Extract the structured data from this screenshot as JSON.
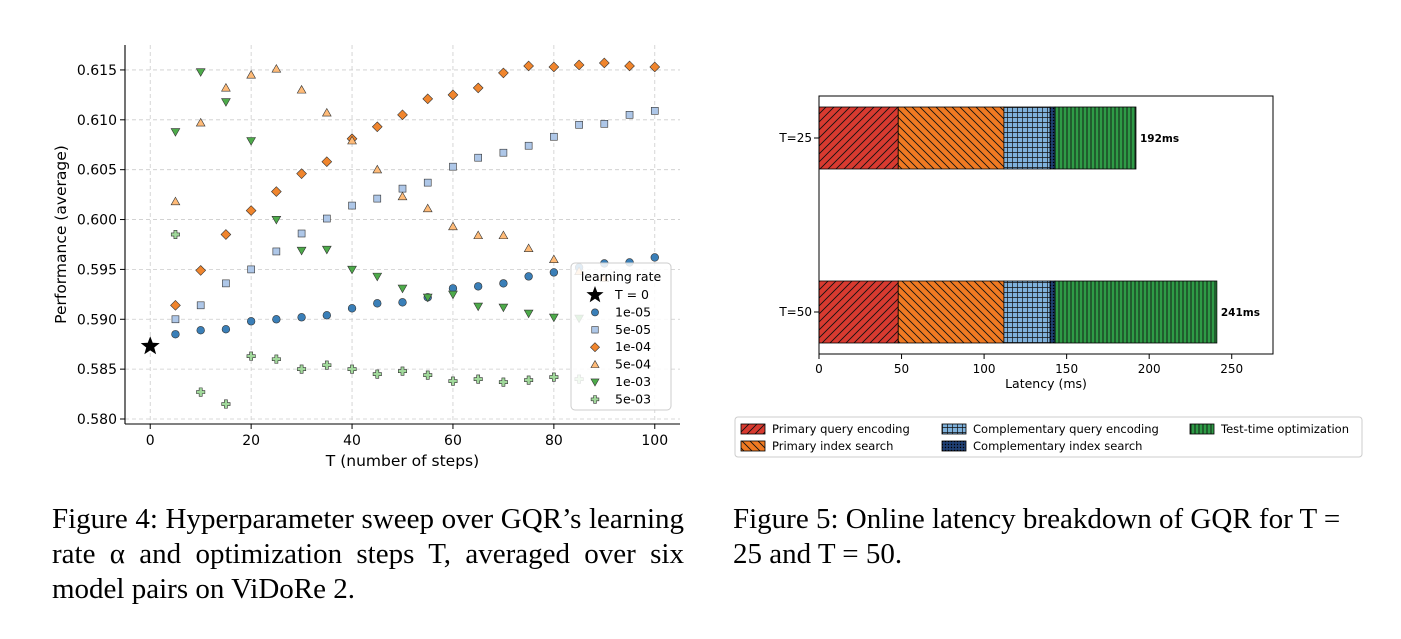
{
  "chart_data": [
    {
      "type": "scatter",
      "xlabel": "T (number of steps)",
      "ylabel": "Performance (average)",
      "xlim": [
        -5,
        105
      ],
      "ylim": [
        0.5795,
        0.6175
      ],
      "xticks": [
        "0",
        "20",
        "40",
        "60",
        "80",
        "100"
      ],
      "yticks": [
        "0.580",
        "0.585",
        "0.590",
        "0.595",
        "0.600",
        "0.605",
        "0.610",
        "0.615"
      ],
      "grid": true,
      "legend": {
        "title": "learning rate",
        "location": "center-right"
      },
      "baseline": {
        "name": "T = 0",
        "x": 0,
        "y": 0.5873,
        "color": "#000000"
      },
      "series": [
        {
          "name": "1e-05",
          "marker": "circle",
          "color": "#3a7fb8",
          "x": [
            5,
            10,
            15,
            20,
            25,
            30,
            35,
            40,
            45,
            50,
            55,
            60,
            65,
            70,
            75,
            80,
            85,
            90,
            95,
            100
          ],
          "y": [
            0.5885,
            0.5889,
            0.589,
            0.5898,
            0.59,
            0.5902,
            0.5904,
            0.5911,
            0.5916,
            0.5917,
            0.5922,
            0.5931,
            0.5933,
            0.5936,
            0.5943,
            0.5947,
            0.5952,
            0.5956,
            0.5957,
            0.5962
          ]
        },
        {
          "name": "5e-05",
          "marker": "square",
          "color": "#aec7e8",
          "x": [
            5,
            10,
            15,
            20,
            25,
            30,
            35,
            40,
            45,
            50,
            55,
            60,
            65,
            70,
            75,
            80,
            85,
            90,
            95,
            100
          ],
          "y": [
            0.59,
            0.5914,
            0.5936,
            0.595,
            0.5968,
            0.5986,
            0.6001,
            0.6014,
            0.6021,
            0.6031,
            0.6037,
            0.6053,
            0.6062,
            0.6067,
            0.6074,
            0.6083,
            0.6095,
            0.6096,
            0.6105,
            0.6109
          ]
        },
        {
          "name": "1e-04",
          "marker": "diamond",
          "color": "#f0852d",
          "x": [
            5,
            10,
            15,
            20,
            25,
            30,
            35,
            40,
            45,
            50,
            55,
            60,
            65,
            70,
            75,
            80,
            85,
            90,
            95,
            100
          ],
          "y": [
            0.5914,
            0.5949,
            0.5985,
            0.6009,
            0.6028,
            0.6046,
            0.6058,
            0.6081,
            0.6093,
            0.6105,
            0.6121,
            0.6125,
            0.6132,
            0.6147,
            0.6154,
            0.6153,
            0.6155,
            0.6157,
            0.6154,
            0.6153
          ]
        },
        {
          "name": "5e-04",
          "marker": "triangle-up",
          "color": "#ffbb78",
          "x": [
            5,
            10,
            15,
            20,
            25,
            30,
            35,
            40,
            45,
            50,
            55,
            60,
            65,
            70,
            75,
            80,
            85,
            90
          ],
          "y": [
            0.6018,
            0.6097,
            0.6132,
            0.6145,
            0.6151,
            0.613,
            0.6107,
            0.6079,
            0.605,
            0.6023,
            0.6011,
            0.5993,
            0.5984,
            0.5984,
            0.5971,
            0.596,
            0.5948,
            0.5941
          ]
        },
        {
          "name": "1e-03",
          "marker": "triangle-down",
          "color": "#4dab4a",
          "x": [
            5,
            10,
            15,
            20,
            25,
            30,
            35,
            40,
            45,
            50,
            55,
            60,
            65,
            70,
            75,
            80,
            85
          ],
          "y": [
            0.6088,
            0.6148,
            0.6118,
            0.6079,
            0.6,
            0.5969,
            0.597,
            0.595,
            0.5943,
            0.5931,
            0.5922,
            0.5925,
            0.5913,
            0.5912,
            0.5906,
            0.5902,
            0.5901
          ]
        },
        {
          "name": "5e-03",
          "marker": "plus",
          "color": "#a1d99b",
          "x": [
            5,
            10,
            15,
            20,
            25,
            30,
            35,
            40,
            45,
            50,
            55,
            60,
            65,
            70,
            75,
            80,
            85
          ],
          "y": [
            0.5985,
            0.5827,
            0.5815,
            0.5863,
            0.586,
            0.585,
            0.5854,
            0.585,
            0.5845,
            0.5848,
            0.5844,
            0.5838,
            0.584,
            0.5837,
            0.5839,
            0.5842,
            0.584
          ]
        }
      ]
    },
    {
      "type": "bar",
      "orientation": "horizontal",
      "stacked": true,
      "categories": [
        "T=25",
        "T=50"
      ],
      "xlabel": "Latency (ms)",
      "xlim": [
        0,
        275
      ],
      "xticks": [
        "0",
        "50",
        "100",
        "150",
        "200",
        "250"
      ],
      "totals": [
        "192ms",
        "241ms"
      ],
      "series": [
        {
          "name": "Primary query encoding",
          "values": [
            48,
            48
          ],
          "color": "#d83a30",
          "hatch": "//"
        },
        {
          "name": "Primary index search",
          "values": [
            64,
            64
          ],
          "color": "#f07a22",
          "hatch": "\\\\"
        },
        {
          "name": "Complementary query encoding",
          "values": [
            28,
            28
          ],
          "color": "#7fb2dc",
          "hatch": "+"
        },
        {
          "name": "Complementary index search",
          "values": [
            3,
            3
          ],
          "color": "#1f3f73",
          "hatch": "."
        },
        {
          "name": "Test-time optimization",
          "values": [
            49,
            98
          ],
          "color": "#2e9b46",
          "hatch": "|"
        }
      ],
      "legend": {
        "location": "bottom",
        "columns": 3
      }
    }
  ],
  "captions": {
    "fig4": "Figure 4: Hyperparameter sweep over GQR’s learning rate α and optimization steps T, averaged over six model pairs on ViDoRe 2.",
    "fig5": "Figure 5: Online latency breakdown of GQR for T = 25 and T = 50."
  }
}
